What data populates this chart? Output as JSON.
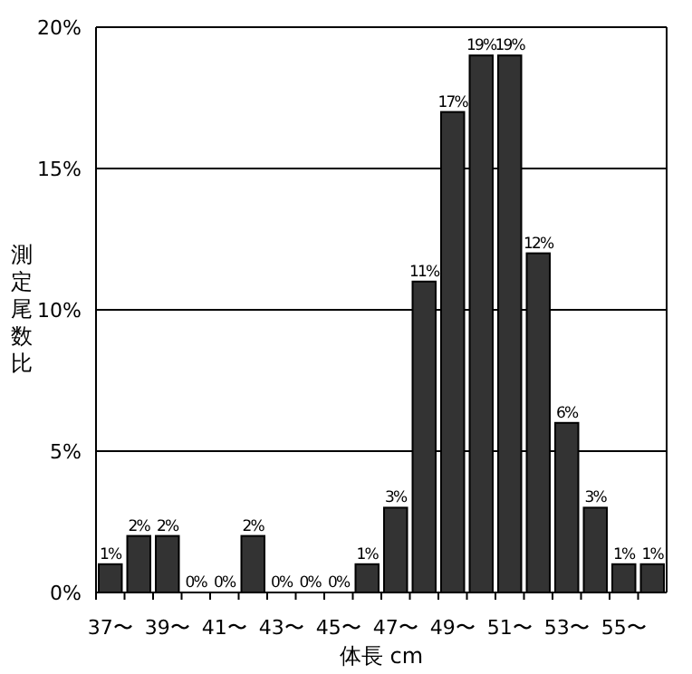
{
  "chart_data": {
    "type": "bar",
    "xlabel": "体長 cm",
    "ylabel": "測定尾数比",
    "categories": [
      "37〜",
      null,
      "39〜",
      null,
      "41〜",
      null,
      "43〜",
      null,
      "45〜",
      null,
      "47〜",
      null,
      "49〜",
      null,
      "51〜",
      null,
      "53〜",
      null,
      "55〜",
      null
    ],
    "values": [
      1,
      2,
      2,
      0,
      0,
      2,
      0,
      0,
      0,
      1,
      3,
      11,
      17,
      19,
      19,
      12,
      6,
      3,
      1,
      1
    ],
    "value_labels": [
      "1%",
      "2%",
      "2%",
      "0%",
      "0%",
      "2%",
      "0%",
      "0%",
      "0%",
      "1%",
      "3%",
      "11%",
      "17%",
      "19%",
      "19%",
      "12%",
      "6%",
      "3%",
      "1%",
      "1%"
    ],
    "color": "#333333",
    "ylim": [
      0,
      20
    ],
    "yticks": [
      {
        "value": 0,
        "label": "0%"
      },
      {
        "value": 5,
        "label": "5%"
      },
      {
        "value": 10,
        "label": "10%"
      },
      {
        "value": 15,
        "label": "15%"
      },
      {
        "value": 20,
        "label": "20%"
      }
    ],
    "grid": "y"
  }
}
